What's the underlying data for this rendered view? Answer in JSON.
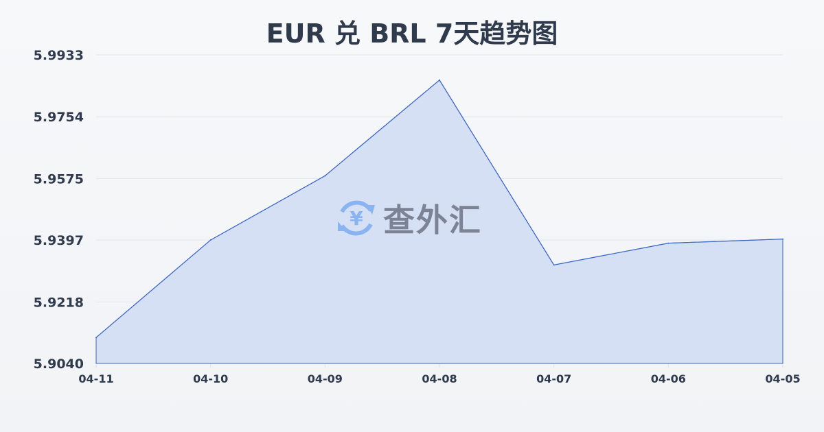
{
  "chart_data": {
    "type": "area",
    "title": "EUR 兑 BRL 7天趋势图",
    "xlabel": "",
    "ylabel": "",
    "categories": [
      "04-11",
      "04-10",
      "04-09",
      "04-08",
      "04-07",
      "04-06",
      "04-05"
    ],
    "values": [
      5.9115,
      5.9397,
      5.9583,
      5.986,
      5.9325,
      5.9388,
      5.94
    ],
    "ylim": [
      5.904,
      5.9933
    ],
    "yticks": [
      "5.9040",
      "5.9218",
      "5.9397",
      "5.9575",
      "5.9754",
      "5.9933"
    ],
    "grid": true,
    "line_color": "#3a66c8",
    "fill_color": "#d6e0f5"
  },
  "watermark": {
    "text": "查外汇",
    "icon": "yen-exchange-icon",
    "icon_color": "#8ab4f0"
  }
}
